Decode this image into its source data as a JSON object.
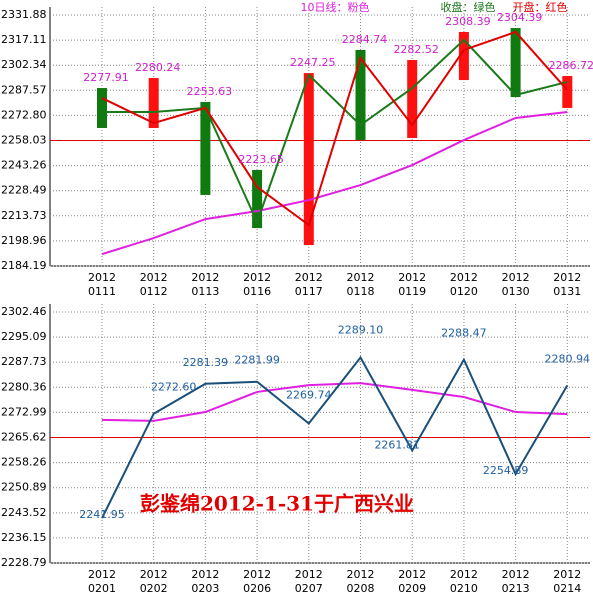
{
  "chart_data": [
    {
      "type": "line",
      "categories": [
        [
          "2012",
          "0111"
        ],
        [
          "2012",
          "0112"
        ],
        [
          "2012",
          "0113"
        ],
        [
          "2012",
          "0116"
        ],
        [
          "2012",
          "0117"
        ],
        [
          "2012",
          "0118"
        ],
        [
          "2012",
          "0119"
        ],
        [
          "2012",
          "0120"
        ],
        [
          "2012",
          "0130"
        ],
        [
          "2012",
          "0131"
        ]
      ],
      "series": [
        {
          "name": "10日线：粉色",
          "color": "#e020e0",
          "values": [
            2191.2,
            2200.6,
            2211.8,
            2216.5,
            2223.0,
            2231.8,
            2243.6,
            2258.3,
            2271.3,
            2274.8
          ]
        },
        {
          "name": "收盘：绿色",
          "color": "#1a7a1a",
          "values": [
            2274.8,
            2274.8,
            2277.2,
            2210.0,
            2296.6,
            2267.1,
            2288.9,
            2317.2,
            2284.8,
            2292.5
          ]
        },
        {
          "name": "开盘：红色",
          "color": "#e00000",
          "values": [
            2283.0,
            2268.3,
            2277.2,
            2230.7,
            2208.3,
            2306.6,
            2267.1,
            2311.3,
            2321.9,
            2287.7
          ]
        }
      ],
      "bar_high": [
        2288.9,
        2294.8,
        2280.7,
        2240.7,
        2297.7,
        2311.3,
        2305.4,
        2321.9,
        2324.2,
        2296.0
      ],
      "bar_low": [
        2265.4,
        2265.4,
        2226.0,
        2206.5,
        2196.5,
        2258.3,
        2259.5,
        2293.6,
        2283.6,
        2277.2
      ],
      "bar_colors": [
        "#107a10",
        "#ff1010",
        "#107a10",
        "#107a10",
        "#ff1010",
        "#107a10",
        "#ff1010",
        "#ff1010",
        "#107a10",
        "#ff1010"
      ],
      "point_labels": [
        2277.91,
        2280.24,
        2253.63,
        2223.65,
        2247.25,
        2284.74,
        2282.52,
        2308.39,
        2304.39,
        2286.72
      ],
      "label_color": "#d020d0",
      "ylim": [
        2184.19,
        2331.88
      ],
      "yticks": [
        {
          "value": 2331.88,
          "label": "2331.88"
        },
        {
          "value": 2317.11,
          "label": "2317.11"
        },
        {
          "value": 2302.34,
          "label": "2302.34"
        },
        {
          "value": 2287.57,
          "label": "2287.57"
        },
        {
          "value": 2272.8,
          "label": "2272.80"
        },
        {
          "value": 2258.03,
          "label": "2258.03"
        },
        {
          "value": 2243.26,
          "label": "2243.26"
        },
        {
          "value": 2228.49,
          "label": "2228.49"
        },
        {
          "value": 2213.73,
          "label": "2213.73"
        },
        {
          "value": 2198.96,
          "label": "2198.96"
        },
        {
          "value": 2184.19,
          "label": "2184.19"
        }
      ],
      "reference_line": 2258.03,
      "grid": true
    },
    {
      "type": "line",
      "categories": [
        [
          "2012",
          "0201"
        ],
        [
          "2012",
          "0202"
        ],
        [
          "2012",
          "0203"
        ],
        [
          "2012",
          "0206"
        ],
        [
          "2012",
          "0207"
        ],
        [
          "2012",
          "0208"
        ],
        [
          "2012",
          "0209"
        ],
        [
          "2012",
          "0210"
        ],
        [
          "2012",
          "0213"
        ],
        [
          "2012",
          "0214"
        ]
      ],
      "series": [
        {
          "color": "#e020e0",
          "values": [
            2270.8,
            2270.5,
            2273.1,
            2279.0,
            2281.0,
            2281.6,
            2279.6,
            2277.5,
            2273.1,
            2272.5
          ]
        },
        {
          "color": "#1a4f7a",
          "values": [
            2241.95,
            2272.6,
            2281.39,
            2281.99,
            2269.74,
            2289.1,
            2261.81,
            2288.47,
            2254.89,
            2280.94
          ],
          "value_labels": [
            "2241.95",
            "2272.60",
            "2281.39",
            "2281.99",
            "2269.74",
            "2289.10",
            "2261.81",
            "2288.47",
            "2254.89",
            "2280.94"
          ]
        }
      ],
      "label_color": "#2060a0",
      "ylim": [
        2228.79,
        2302.46
      ],
      "yticks": [
        {
          "value": 2302.46,
          "label": "2302.46"
        },
        {
          "value": 2295.09,
          "label": "2295.09"
        },
        {
          "value": 2287.73,
          "label": "2287.73"
        },
        {
          "value": 2280.36,
          "label": "2280.36"
        },
        {
          "value": 2272.99,
          "label": "2272.99"
        },
        {
          "value": 2265.62,
          "label": "2265.62"
        },
        {
          "value": 2258.26,
          "label": "2258.26"
        },
        {
          "value": 2250.89,
          "label": "2250.89"
        },
        {
          "value": 2243.52,
          "label": "2243.52"
        },
        {
          "value": 2236.15,
          "label": "2236.15"
        },
        {
          "value": 2228.79,
          "label": "2228.79"
        }
      ],
      "reference_line": 2265.62,
      "annotation": "彭鉴绵2012-1-31于广西兴业",
      "grid": true
    }
  ]
}
